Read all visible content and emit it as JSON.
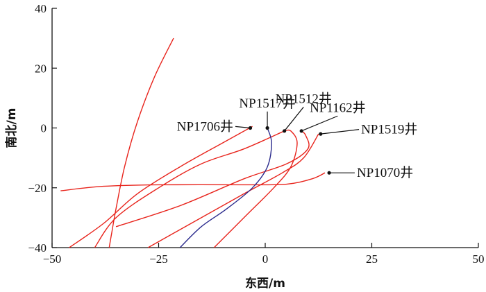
{
  "chart_data": {
    "type": "line",
    "xlabel": "东西/m",
    "ylabel": "南北/m",
    "xlim": [
      -50,
      50
    ],
    "ylim": [
      -40,
      40
    ],
    "xticks": [
      -50,
      -25,
      0,
      25,
      50
    ],
    "yticks": [
      40,
      20,
      0,
      -20,
      -40
    ],
    "grid": false,
    "colors": {
      "red": "#e8241c",
      "blue": "#2a2a8c",
      "axis": "#111111"
    },
    "series": [
      {
        "color": "red",
        "points": [
          [
            -21.5,
            30
          ],
          [
            -26,
            17
          ],
          [
            -30,
            2
          ],
          [
            -33,
            -13
          ],
          [
            -35,
            -27
          ],
          [
            -36,
            -35
          ],
          [
            -36.6,
            -40
          ]
        ]
      },
      {
        "color": "red",
        "points": [
          [
            -48,
            -21
          ],
          [
            -38,
            -19.5
          ],
          [
            -25,
            -19
          ],
          [
            -5,
            -19
          ],
          [
            5,
            -18.8
          ],
          [
            11,
            -17
          ],
          [
            14,
            -15
          ]
        ]
      },
      {
        "color": "red",
        "points": [
          [
            -3,
            0.5
          ],
          [
            -10,
            -5
          ],
          [
            -20,
            -13
          ],
          [
            -30,
            -22
          ],
          [
            -38,
            -32
          ],
          [
            -46,
            -40
          ]
        ]
      },
      {
        "color": "red",
        "points": [
          [
            4.5,
            -1
          ],
          [
            -5,
            -7
          ],
          [
            -15,
            -12
          ],
          [
            -25,
            -20
          ],
          [
            -35,
            -30
          ],
          [
            -40,
            -40
          ]
        ]
      },
      {
        "color": "red",
        "points": [
          [
            -27.5,
            -40
          ],
          [
            -15,
            -30
          ],
          [
            -5,
            -22
          ],
          [
            4,
            -15
          ],
          [
            9,
            -10
          ],
          [
            12.5,
            -2
          ]
        ]
      },
      {
        "color": "red",
        "points": [
          [
            -12,
            -40
          ],
          [
            -5,
            -30
          ],
          [
            2,
            -20
          ],
          [
            6,
            -13
          ],
          [
            7.5,
            -5
          ],
          [
            6,
            -1
          ],
          [
            4.5,
            -1
          ]
        ]
      },
      {
        "color": "red",
        "points": [
          [
            -35,
            -33
          ],
          [
            -20,
            -26
          ],
          [
            -5,
            -17
          ],
          [
            5,
            -12
          ],
          [
            10,
            -7
          ],
          [
            9.5,
            -2.5
          ],
          [
            8.5,
            -1
          ]
        ]
      },
      {
        "color": "blue",
        "points": [
          [
            0.5,
            0
          ],
          [
            1.5,
            -5
          ],
          [
            0.5,
            -13
          ],
          [
            -3,
            -20
          ],
          [
            -9,
            -27
          ],
          [
            -15,
            -33
          ],
          [
            -20,
            -40
          ]
        ]
      }
    ],
    "annotations": [
      {
        "text": "NP1706井",
        "point": [
          -3.5,
          0
        ],
        "anchor": [
          -7,
          0.5
        ]
      },
      {
        "text": "NP1517井",
        "point": [
          0.5,
          0
        ],
        "anchor": [
          0.5,
          5.5
        ]
      },
      {
        "text": "NP1512井",
        "point": [
          4.5,
          -1
        ],
        "anchor": [
          9,
          7
        ]
      },
      {
        "text": "NP1162井",
        "point": [
          8.5,
          -1
        ],
        "anchor": [
          17,
          4
        ]
      },
      {
        "text": "NP1519井",
        "point": [
          13,
          -2
        ],
        "anchor": [
          22,
          -0.5
        ]
      },
      {
        "text": "NP1070井",
        "point": [
          15,
          -15
        ],
        "anchor": [
          21,
          -15
        ]
      }
    ]
  }
}
